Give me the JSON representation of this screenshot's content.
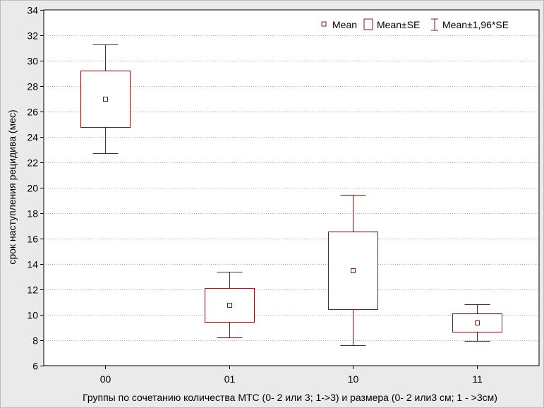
{
  "chart_data": {
    "type": "box",
    "xlabel": "Группы по сочетанию количества МТС (0- 2 или 3; 1->3) и размера (0- 2 или3 см; 1 - >3см)",
    "ylabel": "срок наступления рецидива (мес)",
    "ylim": [
      6,
      34
    ],
    "yticks": [
      "6",
      "8",
      "10",
      "12",
      "14",
      "16",
      "18",
      "20",
      "22",
      "24",
      "26",
      "28",
      "30",
      "32",
      "34"
    ],
    "grid": "horizontal dotted",
    "legend_position": "top-right",
    "legend": [
      "Mean",
      "Mean±SE",
      "Mean±1,96*SE"
    ],
    "categories": [
      "00",
      "01",
      "10",
      "11"
    ],
    "series": [
      {
        "category": "00",
        "mean": 27.0,
        "se_low": 24.8,
        "se_high": 29.2,
        "ci_low": 22.7,
        "ci_high": 31.3
      },
      {
        "category": "01",
        "mean": 10.8,
        "se_low": 9.45,
        "se_high": 12.1,
        "ci_low": 8.2,
        "ci_high": 13.4
      },
      {
        "category": "10",
        "mean": 13.5,
        "se_low": 10.45,
        "se_high": 16.55,
        "ci_low": 7.6,
        "ci_high": 19.45
      },
      {
        "category": "11",
        "mean": 9.4,
        "se_low": 8.65,
        "se_high": 10.1,
        "ci_low": 7.95,
        "ci_high": 10.85
      }
    ],
    "colors": {
      "box": "#7b1a1a",
      "plot_bg": "#ffffff",
      "frame_bg": "#eaeaea",
      "grid": "#b0b0b0"
    }
  }
}
